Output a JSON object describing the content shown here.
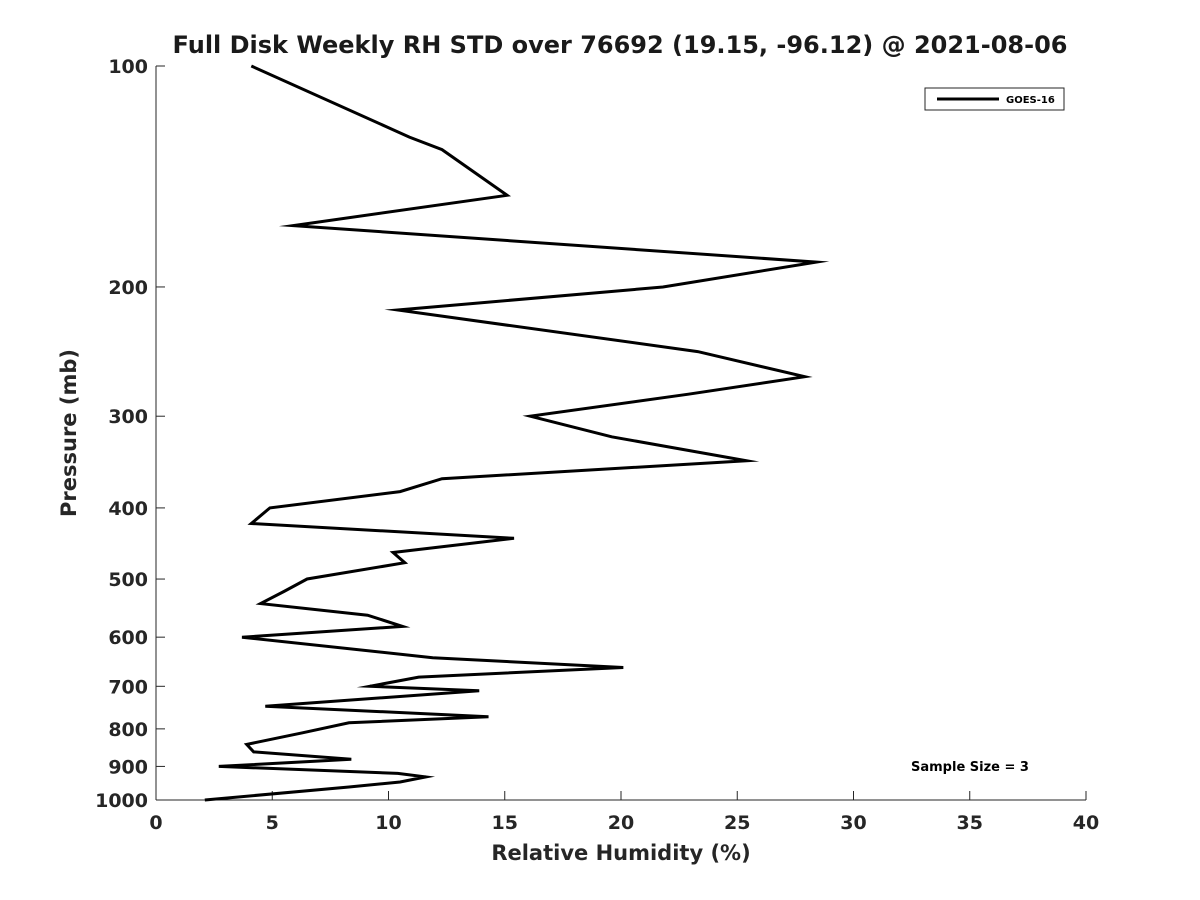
{
  "chart_data": {
    "type": "line",
    "title": "Full Disk Weekly RH STD over 76692 (19.15, -96.12) @ 2021-08-06",
    "xlabel": "Relative Humidity (%)",
    "ylabel": "Pressure (mb)",
    "xlim": [
      0,
      40
    ],
    "ylim": [
      1000,
      100
    ],
    "yscale": "log",
    "y_reversed": true,
    "xticks": [
      "0",
      "5",
      "10",
      "15",
      "20",
      "25",
      "30",
      "35",
      "40"
    ],
    "yticks": [
      "100",
      "200",
      "300",
      "400",
      "500",
      "600",
      "700",
      "800",
      "900",
      "1000"
    ],
    "grid": false,
    "legend": {
      "placement": "top-right",
      "entries": [
        "GOES-16"
      ]
    },
    "annotation": "Sample Size = 3",
    "series": [
      {
        "name": "GOES-16",
        "color": "#000000",
        "points": [
          [
            4.1,
            100
          ],
          [
            10.9,
            125
          ],
          [
            12.3,
            130
          ],
          [
            15.1,
            150
          ],
          [
            5.9,
            165
          ],
          [
            28.4,
            185
          ],
          [
            21.8,
            200
          ],
          [
            10.4,
            215
          ],
          [
            23.3,
            245
          ],
          [
            27.9,
            265
          ],
          [
            22.9,
            280
          ],
          [
            16.1,
            300
          ],
          [
            19.6,
            320
          ],
          [
            25.4,
            345
          ],
          [
            12.3,
            365
          ],
          [
            10.5,
            380
          ],
          [
            4.9,
            400
          ],
          [
            4.1,
            420
          ],
          [
            15.4,
            440
          ],
          [
            10.2,
            460
          ],
          [
            10.7,
            475
          ],
          [
            6.5,
            500
          ],
          [
            5.5,
            520
          ],
          [
            4.5,
            540
          ],
          [
            9.1,
            560
          ],
          [
            10.6,
            580
          ],
          [
            3.7,
            600
          ],
          [
            11.9,
            640
          ],
          [
            20.1,
            660
          ],
          [
            11.3,
            680
          ],
          [
            9.2,
            700
          ],
          [
            13.9,
            710
          ],
          [
            4.7,
            745
          ],
          [
            14.3,
            770
          ],
          [
            8.3,
            785
          ],
          [
            6.3,
            810
          ],
          [
            3.9,
            840
          ],
          [
            4.2,
            860
          ],
          [
            8.4,
            880
          ],
          [
            2.7,
            900
          ],
          [
            10.4,
            920
          ],
          [
            11.6,
            930
          ],
          [
            10.5,
            945
          ],
          [
            8.3,
            960
          ],
          [
            2.1,
            1000
          ]
        ]
      }
    ]
  }
}
